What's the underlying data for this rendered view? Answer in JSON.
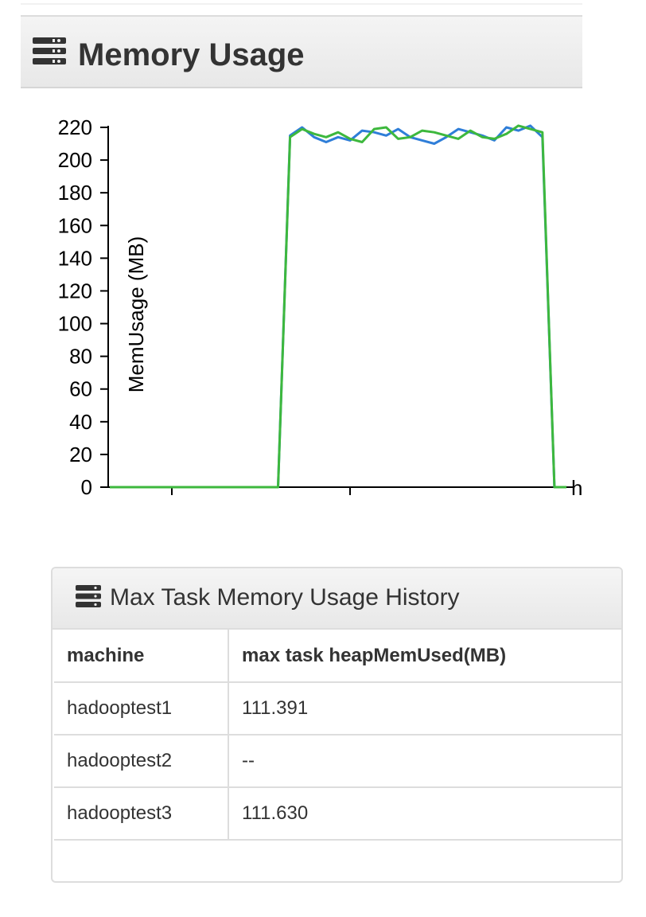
{
  "memory_panel": {
    "title": "Memory Usage",
    "icon": "list-icon"
  },
  "chart_data": {
    "type": "line",
    "ylabel": "MemUsage (MB)",
    "ylim": [
      0,
      220
    ],
    "yticks": [
      "0",
      "20",
      "40",
      "60",
      "80",
      "100",
      "120",
      "140",
      "160",
      "180",
      "200",
      "220"
    ],
    "xlabel_partial": "h",
    "x": [
      0,
      1,
      2,
      3,
      4,
      5,
      6,
      7,
      8,
      9,
      10,
      11,
      12,
      13,
      14,
      15,
      16,
      17,
      18,
      19,
      20,
      21,
      22,
      23,
      24,
      25,
      26,
      27,
      28,
      29,
      30,
      31,
      32,
      33,
      34,
      35,
      36,
      37,
      38
    ],
    "series": [
      {
        "color": "#2f7ed8",
        "values": [
          0,
          0,
          0,
          0,
          0,
          0,
          0,
          0,
          0,
          0,
          0,
          0,
          0,
          0,
          0,
          215,
          220,
          214,
          211,
          214,
          212,
          218,
          217,
          215,
          219,
          214,
          212,
          210,
          214,
          219,
          217,
          215,
          212,
          220,
          218,
          221,
          214,
          0,
          0
        ]
      },
      {
        "color": "#3db83d",
        "values": [
          0,
          0,
          0,
          0,
          0,
          0,
          0,
          0,
          0,
          0,
          0,
          0,
          0,
          0,
          0,
          214,
          219,
          216,
          214,
          217,
          213,
          211,
          219,
          220,
          213,
          214,
          218,
          217,
          215,
          213,
          218,
          214,
          213,
          216,
          221,
          219,
          217,
          0,
          0
        ]
      }
    ]
  },
  "history_panel": {
    "title": "Max Task Memory Usage History",
    "icon": "list-icon",
    "columns": [
      "machine",
      "max task heapMemUsed(MB)"
    ],
    "rows": [
      [
        "hadooptest1",
        "111.391"
      ],
      [
        "hadooptest2",
        "--"
      ],
      [
        "hadooptest3",
        "111.630"
      ]
    ]
  }
}
